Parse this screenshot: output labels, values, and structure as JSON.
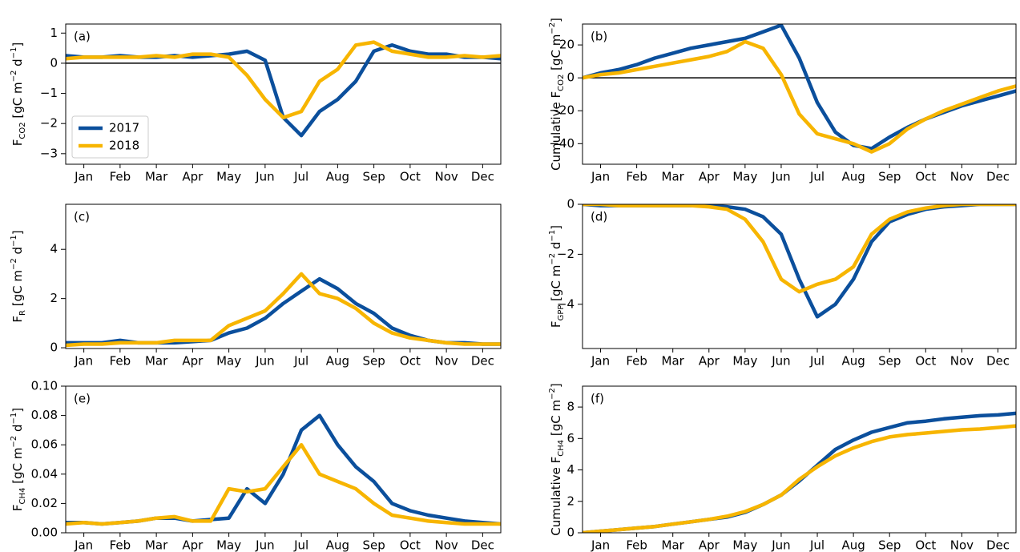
{
  "chart_data": [
    {
      "type": "line",
      "panel_label": "(a)",
      "y_label": [
        {
          "text": "F",
          "style": "normal"
        },
        {
          "text": "CO2",
          "style": "sub"
        },
        {
          "text": " [gC m",
          "style": "normal"
        },
        {
          "text": "−2",
          "style": "sup"
        },
        {
          "text": " d",
          "style": "normal"
        },
        {
          "text": "−1",
          "style": "sup"
        },
        {
          "text": "]",
          "style": "normal"
        }
      ],
      "x": [
        0,
        0.5,
        1,
        1.5,
        2,
        2.5,
        3,
        3.5,
        4,
        4.5,
        5,
        5.5,
        6,
        6.5,
        7,
        7.5,
        8,
        8.5,
        9,
        9.5,
        10,
        10.5,
        11,
        11.5,
        12
      ],
      "xlim": [
        0,
        12
      ],
      "xticks": [
        {
          "value": 0.5,
          "label": "Jan"
        },
        {
          "value": 1.5,
          "label": "Feb"
        },
        {
          "value": 2.5,
          "label": "Mar"
        },
        {
          "value": 3.5,
          "label": "Apr"
        },
        {
          "value": 4.5,
          "label": "May"
        },
        {
          "value": 5.5,
          "label": "Jun"
        },
        {
          "value": 6.5,
          "label": "Jul"
        },
        {
          "value": 7.5,
          "label": "Aug"
        },
        {
          "value": 8.5,
          "label": "Sep"
        },
        {
          "value": 9.5,
          "label": "Oct"
        },
        {
          "value": 10.5,
          "label": "Nov"
        },
        {
          "value": 11.5,
          "label": "Dec"
        }
      ],
      "ylim": [
        -3.35,
        1.3
      ],
      "yticks": [
        {
          "value": -3,
          "label": "−3"
        },
        {
          "value": -2,
          "label": "−2"
        },
        {
          "value": -1,
          "label": "−1"
        },
        0,
        1
      ],
      "zero_line": true,
      "legend": "lower left",
      "series": [
        {
          "name": "2017",
          "color": "#0b4f9c",
          "values": [
            0.25,
            0.2,
            0.2,
            0.25,
            0.2,
            0.2,
            0.25,
            0.2,
            0.25,
            0.3,
            0.4,
            0.1,
            -1.8,
            -2.4,
            -1.6,
            -1.2,
            -0.6,
            0.4,
            0.6,
            0.4,
            0.3,
            0.3,
            0.2,
            0.2,
            0.15
          ]
        },
        {
          "name": "2018",
          "color": "#f7b500",
          "values": [
            0.15,
            0.2,
            0.2,
            0.2,
            0.2,
            0.25,
            0.2,
            0.3,
            0.3,
            0.2,
            -0.4,
            -1.2,
            -1.8,
            -1.6,
            -0.6,
            -0.2,
            0.6,
            0.7,
            0.4,
            0.3,
            0.2,
            0.2,
            0.25,
            0.2,
            0.25
          ]
        }
      ]
    },
    {
      "type": "line",
      "panel_label": "(b)",
      "y_label": [
        {
          "text": "Cumulative F",
          "style": "normal"
        },
        {
          "text": "CO2",
          "style": "sub"
        },
        {
          "text": " [gC m",
          "style": "normal"
        },
        {
          "text": "−2",
          "style": "sup"
        },
        {
          "text": "]",
          "style": "normal"
        }
      ],
      "x": [
        0,
        0.5,
        1,
        1.5,
        2,
        2.5,
        3,
        3.5,
        4,
        4.5,
        5,
        5.5,
        6,
        6.5,
        7,
        7.5,
        8,
        8.5,
        9,
        9.5,
        10,
        10.5,
        11,
        11.5,
        12
      ],
      "xlim": [
        0,
        12
      ],
      "xticks": [
        {
          "value": 0.5,
          "label": "Jan"
        },
        {
          "value": 1.5,
          "label": "Feb"
        },
        {
          "value": 2.5,
          "label": "Mar"
        },
        {
          "value": 3.5,
          "label": "Apr"
        },
        {
          "value": 4.5,
          "label": "May"
        },
        {
          "value": 5.5,
          "label": "Jun"
        },
        {
          "value": 6.5,
          "label": "Jul"
        },
        {
          "value": 7.5,
          "label": "Aug"
        },
        {
          "value": 8.5,
          "label": "Sep"
        },
        {
          "value": 9.5,
          "label": "Oct"
        },
        {
          "value": 10.5,
          "label": "Nov"
        },
        {
          "value": 11.5,
          "label": "Dec"
        }
      ],
      "ylim": [
        -52.5,
        32.7
      ],
      "yticks": [
        {
          "value": -40,
          "label": "−40"
        },
        {
          "value": -20,
          "label": "−20"
        },
        0,
        20
      ],
      "zero_line": true,
      "series": [
        {
          "color": "#0b4f9c",
          "values": [
            0,
            3,
            5,
            8,
            12,
            15,
            18,
            20,
            22,
            24,
            28,
            32,
            12,
            -15,
            -33,
            -41,
            -43,
            -36,
            -30,
            -25,
            -21,
            -17,
            -14,
            -11,
            -8
          ]
        },
        {
          "color": "#f7b500",
          "values": [
            0,
            2,
            3,
            5,
            7,
            9,
            11,
            13,
            16,
            22,
            18,
            2,
            -22,
            -34,
            -37,
            -40,
            -45,
            -40,
            -31,
            -25,
            -20,
            -16,
            -12,
            -8,
            -5
          ]
        }
      ]
    },
    {
      "type": "line",
      "panel_label": "(c)",
      "y_label": [
        {
          "text": "F",
          "style": "normal"
        },
        {
          "text": "R",
          "style": "sub"
        },
        {
          "text": " [gC m",
          "style": "normal"
        },
        {
          "text": "−2",
          "style": "sup"
        },
        {
          "text": " d",
          "style": "normal"
        },
        {
          "text": "−1",
          "style": "sup"
        },
        {
          "text": "]",
          "style": "normal"
        }
      ],
      "x": [
        0,
        0.5,
        1,
        1.5,
        2,
        2.5,
        3,
        3.5,
        4,
        4.5,
        5,
        5.5,
        6,
        6.5,
        7,
        7.5,
        8,
        8.5,
        9,
        9.5,
        10,
        10.5,
        11,
        11.5,
        12
      ],
      "xlim": [
        0,
        12
      ],
      "xticks": [
        {
          "value": 0.5,
          "label": "Jan"
        },
        {
          "value": 1.5,
          "label": "Feb"
        },
        {
          "value": 2.5,
          "label": "Mar"
        },
        {
          "value": 3.5,
          "label": "Apr"
        },
        {
          "value": 4.5,
          "label": "May"
        },
        {
          "value": 5.5,
          "label": "Jun"
        },
        {
          "value": 6.5,
          "label": "Jul"
        },
        {
          "value": 7.5,
          "label": "Aug"
        },
        {
          "value": 8.5,
          "label": "Sep"
        },
        {
          "value": 9.5,
          "label": "Oct"
        },
        {
          "value": 10.5,
          "label": "Nov"
        },
        {
          "value": 11.5,
          "label": "Dec"
        }
      ],
      "ylim": [
        -0.03,
        5.83
      ],
      "yticks": [
        0,
        2,
        4
      ],
      "series": [
        {
          "color": "#0b4f9c",
          "values": [
            0.2,
            0.2,
            0.2,
            0.3,
            0.2,
            0.2,
            0.2,
            0.25,
            0.3,
            0.6,
            0.8,
            1.2,
            1.8,
            2.3,
            2.8,
            2.4,
            1.8,
            1.4,
            0.8,
            0.5,
            0.3,
            0.2,
            0.2,
            0.15,
            0.15
          ]
        },
        {
          "color": "#f7b500",
          "values": [
            0.1,
            0.15,
            0.15,
            0.2,
            0.2,
            0.2,
            0.3,
            0.3,
            0.3,
            0.9,
            1.2,
            1.5,
            2.2,
            3,
            2.2,
            2,
            1.6,
            1,
            0.6,
            0.4,
            0.3,
            0.2,
            0.15,
            0.15,
            0.15
          ]
        }
      ]
    },
    {
      "type": "line",
      "panel_label": "(d)",
      "y_label": [
        {
          "text": "F",
          "style": "normal"
        },
        {
          "text": "GPP",
          "style": "sub"
        },
        {
          "text": " [gC m",
          "style": "normal"
        },
        {
          "text": "−2",
          "style": "sup"
        },
        {
          "text": " d",
          "style": "normal"
        },
        {
          "text": "−1",
          "style": "sup"
        },
        {
          "text": "]",
          "style": "normal"
        }
      ],
      "x": [
        0,
        0.5,
        1,
        1.5,
        2,
        2.5,
        3,
        3.5,
        4,
        4.5,
        5,
        5.5,
        6,
        6.5,
        7,
        7.5,
        8,
        8.5,
        9,
        9.5,
        10,
        10.5,
        11,
        11.5,
        12
      ],
      "xlim": [
        0,
        12
      ],
      "xticks": [
        {
          "value": 0.5,
          "label": "Jan"
        },
        {
          "value": 1.5,
          "label": "Feb"
        },
        {
          "value": 2.5,
          "label": "Mar"
        },
        {
          "value": 3.5,
          "label": "Apr"
        },
        {
          "value": 4.5,
          "label": "May"
        },
        {
          "value": 5.5,
          "label": "Jun"
        },
        {
          "value": 6.5,
          "label": "Jul"
        },
        {
          "value": 7.5,
          "label": "Aug"
        },
        {
          "value": 8.5,
          "label": "Sep"
        },
        {
          "value": 9.5,
          "label": "Oct"
        },
        {
          "value": 10.5,
          "label": "Nov"
        },
        {
          "value": 11.5,
          "label": "Dec"
        }
      ],
      "ylim": [
        -5.77,
        0
      ],
      "yticks": [
        {
          "value": -4,
          "label": "−4"
        },
        {
          "value": -2,
          "label": "−2"
        },
        0
      ],
      "series": [
        {
          "color": "#0b4f9c",
          "values": [
            0,
            -0.05,
            -0.05,
            -0.05,
            -0.05,
            -0.05,
            -0.05,
            -0.05,
            -0.1,
            -0.2,
            -0.5,
            -1.2,
            -3,
            -4.5,
            -4,
            -3,
            -1.5,
            -0.7,
            -0.4,
            -0.2,
            -0.1,
            -0.05,
            0,
            0,
            0
          ]
        },
        {
          "color": "#f7b500",
          "values": [
            0,
            0,
            -0.05,
            -0.05,
            -0.05,
            -0.05,
            -0.05,
            -0.1,
            -0.2,
            -0.6,
            -1.5,
            -3,
            -3.5,
            -3.2,
            -3,
            -2.5,
            -1.2,
            -0.6,
            -0.3,
            -0.15,
            -0.05,
            0,
            0,
            0,
            0
          ]
        }
      ]
    },
    {
      "type": "line",
      "panel_label": "(e)",
      "y_label": [
        {
          "text": "F",
          "style": "normal"
        },
        {
          "text": "CH4",
          "style": "sub"
        },
        {
          "text": " [gC m",
          "style": "normal"
        },
        {
          "text": "−2",
          "style": "sup"
        },
        {
          "text": " d",
          "style": "normal"
        },
        {
          "text": "−1",
          "style": "sup"
        },
        {
          "text": "]",
          "style": "normal"
        }
      ],
      "x": [
        0,
        0.5,
        1,
        1.5,
        2,
        2.5,
        3,
        3.5,
        4,
        4.5,
        5,
        5.5,
        6,
        6.5,
        7,
        7.5,
        8,
        8.5,
        9,
        9.5,
        10,
        10.5,
        11,
        11.5,
        12
      ],
      "xlim": [
        0,
        12
      ],
      "xticks": [
        {
          "value": 0.5,
          "label": "Jan"
        },
        {
          "value": 1.5,
          "label": "Feb"
        },
        {
          "value": 2.5,
          "label": "Mar"
        },
        {
          "value": 3.5,
          "label": "Apr"
        },
        {
          "value": 4.5,
          "label": "May"
        },
        {
          "value": 5.5,
          "label": "Jun"
        },
        {
          "value": 6.5,
          "label": "Jul"
        },
        {
          "value": 7.5,
          "label": "Aug"
        },
        {
          "value": 8.5,
          "label": "Sep"
        },
        {
          "value": 9.5,
          "label": "Oct"
        },
        {
          "value": 10.5,
          "label": "Nov"
        },
        {
          "value": 11.5,
          "label": "Dec"
        }
      ],
      "ylim": [
        0,
        0.1
      ],
      "yticks": [
        {
          "value": 0,
          "label": "0.00"
        },
        0.02,
        0.04,
        0.06,
        0.08,
        {
          "value": 0.1,
          "label": "0.10"
        }
      ],
      "series": [
        {
          "color": "#0b4f9c",
          "values": [
            0.007,
            0.007,
            0.006,
            0.007,
            0.008,
            0.01,
            0.01,
            0.008,
            0.009,
            0.01,
            0.03,
            0.02,
            0.04,
            0.07,
            0.08,
            0.06,
            0.045,
            0.035,
            0.02,
            0.015,
            0.012,
            0.01,
            0.008,
            0.007,
            0.006
          ]
        },
        {
          "color": "#f7b500",
          "values": [
            0.006,
            0.007,
            0.006,
            0.007,
            0.008,
            0.01,
            0.011,
            0.008,
            0.008,
            0.03,
            0.028,
            0.03,
            0.045,
            0.06,
            0.04,
            0.035,
            0.03,
            0.02,
            0.012,
            0.01,
            0.008,
            0.007,
            0.006,
            0.006,
            0.006
          ]
        }
      ]
    },
    {
      "type": "line",
      "panel_label": "(f)",
      "y_label": [
        {
          "text": "Cumulative F",
          "style": "normal"
        },
        {
          "text": "CH4",
          "style": "sub"
        },
        {
          "text": " [gC m",
          "style": "normal"
        },
        {
          "text": "−2",
          "style": "sup"
        },
        {
          "text": "]",
          "style": "normal"
        }
      ],
      "x": [
        0,
        0.5,
        1,
        1.5,
        2,
        2.5,
        3,
        3.5,
        4,
        4.5,
        5,
        5.5,
        6,
        6.5,
        7,
        7.5,
        8,
        8.5,
        9,
        9.5,
        10,
        10.5,
        11,
        11.5,
        12
      ],
      "xlim": [
        0,
        12
      ],
      "xticks": [
        {
          "value": 0.5,
          "label": "Jan"
        },
        {
          "value": 1.5,
          "label": "Feb"
        },
        {
          "value": 2.5,
          "label": "Mar"
        },
        {
          "value": 3.5,
          "label": "Apr"
        },
        {
          "value": 4.5,
          "label": "May"
        },
        {
          "value": 5.5,
          "label": "Jun"
        },
        {
          "value": 6.5,
          "label": "Jul"
        },
        {
          "value": 7.5,
          "label": "Aug"
        },
        {
          "value": 8.5,
          "label": "Sep"
        },
        {
          "value": 9.5,
          "label": "Oct"
        },
        {
          "value": 10.5,
          "label": "Nov"
        },
        {
          "value": 11.5,
          "label": "Dec"
        }
      ],
      "ylim": [
        0,
        9.33
      ],
      "yticks": [
        0,
        2,
        4,
        6,
        8
      ],
      "series": [
        {
          "color": "#0b4f9c",
          "values": [
            0,
            0.1,
            0.2,
            0.3,
            0.4,
            0.55,
            0.7,
            0.85,
            1,
            1.3,
            1.8,
            2.4,
            3.3,
            4.3,
            5.3,
            5.9,
            6.4,
            6.7,
            7,
            7.1,
            7.25,
            7.35,
            7.45,
            7.5,
            7.6
          ]
        },
        {
          "color": "#f7b500",
          "values": [
            0,
            0.1,
            0.2,
            0.3,
            0.4,
            0.55,
            0.7,
            0.85,
            1.05,
            1.35,
            1.8,
            2.4,
            3.4,
            4.2,
            4.9,
            5.4,
            5.8,
            6.1,
            6.25,
            6.35,
            6.45,
            6.55,
            6.6,
            6.7,
            6.8
          ]
        }
      ]
    }
  ]
}
